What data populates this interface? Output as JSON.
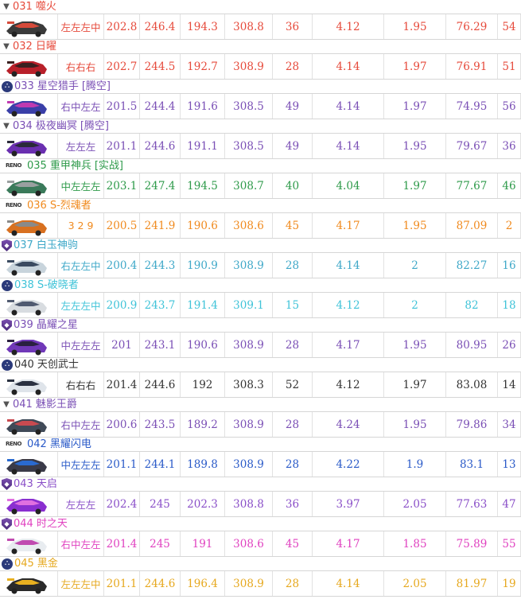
{
  "cars": [
    {
      "num": "031",
      "name": "噬火",
      "tag": "",
      "marker": "tri",
      "color": "#e64a3b",
      "body": "#3a3a3a",
      "accent": "#d64a3a",
      "seq": "左左左中",
      "v": [
        "202.8",
        "246.4",
        "194.3",
        "308.8",
        "36",
        "4.12",
        "1.95",
        "76.29",
        "54"
      ]
    },
    {
      "num": "032",
      "name": "日曜",
      "tag": "",
      "marker": "tri",
      "color": "#e64a3b",
      "body": "#b8202a",
      "accent": "#3a2020",
      "seq": "右右右",
      "v": [
        "202.7",
        "244.5",
        "192.7",
        "308.9",
        "28",
        "4.14",
        "1.97",
        "76.91",
        "51"
      ]
    },
    {
      "num": "033",
      "name": "星空猎手",
      "tag": "[腾空]",
      "marker": "circle",
      "color": "#7a4fb5",
      "body": "#3a3fa8",
      "accent": "#c03ab0",
      "seq": "右中左左",
      "v": [
        "201.5",
        "244.4",
        "191.6",
        "308.5",
        "49",
        "4.14",
        "1.97",
        "74.95",
        "56"
      ]
    },
    {
      "num": "034",
      "name": "极夜幽冥",
      "tag": "[腾空]",
      "marker": "tri",
      "color": "#7a4fb5",
      "body": "#6a2fb0",
      "accent": "#2a2a3a",
      "seq": "左左左",
      "v": [
        "201.1",
        "244.6",
        "191.1",
        "308.5",
        "49",
        "4.14",
        "1.95",
        "79.67",
        "36"
      ]
    },
    {
      "num": "035",
      "name": "重甲神兵",
      "tag": "[实战]",
      "marker": "brand",
      "color": "#2e9a4a",
      "body": "#3a7a5a",
      "accent": "#9aa0a0",
      "seq": "中左左左",
      "v": [
        "203.1",
        "247.4",
        "194.5",
        "308.7",
        "40",
        "4.04",
        "1.97",
        "77.67",
        "46"
      ]
    },
    {
      "num": "036",
      "name": "S-烈魂者",
      "tag": "",
      "marker": "brand",
      "color": "#f08a1e",
      "body": "#d87020",
      "accent": "#8a8a8a",
      "seq": "3 2 9",
      "v": [
        "200.5",
        "241.9",
        "190.6",
        "308.6",
        "45",
        "4.17",
        "1.95",
        "87.09",
        "2"
      ]
    },
    {
      "num": "037",
      "name": "白玉神驹",
      "tag": "",
      "marker": "shield",
      "color": "#3fa8c8",
      "body": "#c8d4dc",
      "accent": "#3a4a60",
      "seq": "右左左中",
      "v": [
        "200.4",
        "244.3",
        "190.9",
        "308.9",
        "28",
        "4.14",
        "2",
        "82.27",
        "16"
      ]
    },
    {
      "num": "038",
      "name": "S-破晓者",
      "tag": "",
      "marker": "circle",
      "color": "#3fc3d8",
      "body": "#d8dce0",
      "accent": "#505a70",
      "seq": "左左左中",
      "v": [
        "200.9",
        "243.7",
        "191.4",
        "309.1",
        "15",
        "4.12",
        "2",
        "82",
        "18"
      ]
    },
    {
      "num": "039",
      "name": "晶耀之星",
      "tag": "",
      "marker": "shield",
      "color": "#7a4fb5",
      "body": "#7038b8",
      "accent": "#2a2040",
      "seq": "中左左左",
      "v": [
        "201",
        "243.1",
        "190.6",
        "308.9",
        "28",
        "4.17",
        "1.95",
        "80.95",
        "26"
      ]
    },
    {
      "num": "040",
      "name": "天创武士",
      "tag": "",
      "marker": "circle",
      "color": "#333333",
      "body": "#dfe4ea",
      "accent": "#2a3040",
      "seq": "右右右",
      "v": [
        "201.4",
        "244.6",
        "192",
        "308.3",
        "52",
        "4.12",
        "1.97",
        "83.08",
        "14"
      ]
    },
    {
      "num": "041",
      "name": "魅影王爵",
      "tag": "",
      "marker": "tri",
      "color": "#7a4fb5",
      "body": "#404a58",
      "accent": "#c84a50",
      "seq": "右中左左",
      "v": [
        "200.6",
        "243.5",
        "189.2",
        "308.9",
        "28",
        "4.24",
        "1.95",
        "79.86",
        "34"
      ]
    },
    {
      "num": "042",
      "name": "黑耀闪电",
      "tag": "",
      "marker": "brand",
      "color": "#2a5ac8",
      "body": "#3a3a48",
      "accent": "#2a6ad0",
      "seq": "中左左左",
      "v": [
        "201.1",
        "244.1",
        "189.8",
        "308.9",
        "28",
        "4.22",
        "1.9",
        "83.1",
        "13"
      ]
    },
    {
      "num": "043",
      "name": "天启",
      "tag": "",
      "marker": "shield",
      "color": "#8a4fc8",
      "body": "#8a2fd0",
      "accent": "#e070e0",
      "seq": "左左左",
      "v": [
        "202.4",
        "245",
        "202.3",
        "308.8",
        "36",
        "3.97",
        "2.05",
        "77.63",
        "47"
      ]
    },
    {
      "num": "044",
      "name": "时之天",
      "tag": "",
      "marker": "shield",
      "color": "#e042c0",
      "body": "#e8ecf0",
      "accent": "#c04ab0",
      "seq": "右中左左",
      "v": [
        "201.4",
        "245",
        "191",
        "308.6",
        "45",
        "4.17",
        "1.85",
        "75.89",
        "55"
      ]
    },
    {
      "num": "045",
      "name": "黑金",
      "tag": "",
      "marker": "circle",
      "color": "#e6a81e",
      "body": "#2a2a2a",
      "accent": "#e8b020",
      "seq": "左左左中",
      "v": [
        "201.1",
        "244.6",
        "196.4",
        "308.9",
        "28",
        "4.14",
        "2.05",
        "81.97",
        "19"
      ]
    }
  ],
  "brand_text": "RENO",
  "marker_glyphs": {
    "tri": "▼",
    "circle": "⛬",
    "shield": "◆"
  }
}
